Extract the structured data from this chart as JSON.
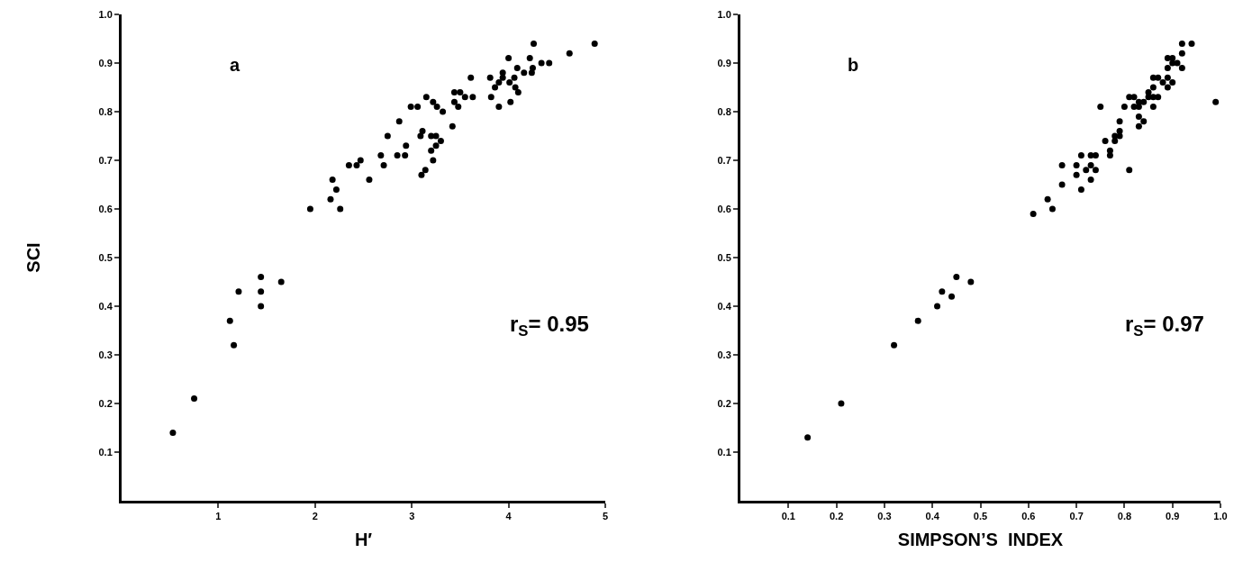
{
  "chart_data": [
    {
      "type": "scatter",
      "xlabel": "H′",
      "ylabel": "SCI",
      "marker": "circle",
      "grid": false,
      "annotations": [
        "a",
        "r$_{S}$= 0.95"
      ],
      "xlim": [
        0,
        5
      ],
      "xticks": [
        1,
        2,
        3,
        4,
        5
      ],
      "ylim": [
        0,
        1
      ],
      "yticks": [
        0.1,
        0.2,
        0.3,
        0.4,
        0.5,
        0.6,
        0.7,
        0.8,
        0.9,
        {
          "value": 1,
          "label": "1.0"
        }
      ],
      "series": [
        {
          "color": "#000000",
          "x": [
            0.53,
            0.75,
            1.12,
            1.16,
            1.21,
            1.44,
            1.44,
            1.44,
            1.65,
            1.95,
            2.16,
            2.26,
            2.18,
            2.22,
            2.35,
            2.43,
            2.47,
            2.56,
            2.68,
            2.71,
            2.75,
            2.85,
            2.87,
            2.93,
            2.94,
            2.99,
            3.06,
            3.1,
            3.09,
            3.11,
            3.14,
            3.15,
            3.2,
            3.2,
            3.22,
            3.22,
            3.25,
            3.25,
            3.26,
            3.3,
            3.32,
            3.42,
            3.44,
            3.44,
            3.48,
            3.5,
            3.55,
            3.61,
            3.63,
            3.81,
            3.82,
            3.86,
            3.9,
            3.9,
            3.94,
            3.94,
            4.0,
            4.01,
            4.02,
            4.06,
            4.07,
            4.09,
            4.1,
            4.16,
            4.22,
            4.24,
            4.25,
            4.26,
            4.34,
            4.42,
            4.63,
            4.89
          ],
          "values": [
            0.14,
            0.21,
            0.37,
            0.32,
            0.43,
            0.46,
            0.43,
            0.4,
            0.45,
            0.6,
            0.62,
            0.6,
            0.66,
            0.64,
            0.69,
            0.69,
            0.7,
            0.66,
            0.71,
            0.69,
            0.75,
            0.71,
            0.78,
            0.71,
            0.73,
            0.81,
            0.81,
            0.67,
            0.75,
            0.76,
            0.68,
            0.83,
            0.72,
            0.75,
            0.7,
            0.82,
            0.75,
            0.73,
            0.81,
            0.74,
            0.8,
            0.77,
            0.84,
            0.82,
            0.81,
            0.84,
            0.83,
            0.87,
            0.83,
            0.87,
            0.83,
            0.85,
            0.81,
            0.86,
            0.88,
            0.87,
            0.91,
            0.86,
            0.82,
            0.87,
            0.85,
            0.89,
            0.84,
            0.88,
            0.91,
            0.88,
            0.89,
            0.94,
            0.9,
            0.9,
            0.92,
            0.94
          ]
        }
      ]
    },
    {
      "type": "scatter",
      "xlabel": "SIMPSON’S  INDEX",
      "marker": "circle",
      "grid": false,
      "annotations": [
        "b",
        "r$_{S}$= 0.97"
      ],
      "xlim": [
        0,
        1
      ],
      "xticks": [
        0.1,
        0.2,
        0.3,
        0.4,
        0.5,
        0.6,
        0.7,
        0.8,
        0.9,
        {
          "value": 1,
          "label": "1.0"
        }
      ],
      "ylim": [
        0,
        1
      ],
      "yticks": [
        0.1,
        0.2,
        0.3,
        0.4,
        0.5,
        0.6,
        0.7,
        0.8,
        0.9,
        {
          "value": 1,
          "label": "1.0"
        }
      ],
      "series": [
        {
          "color": "#000000",
          "x": [
            0.14,
            0.21,
            0.32,
            0.37,
            0.41,
            0.42,
            0.44,
            0.45,
            0.48,
            0.61,
            0.64,
            0.65,
            0.67,
            0.67,
            0.7,
            0.7,
            0.71,
            0.71,
            0.72,
            0.73,
            0.73,
            0.73,
            0.74,
            0.74,
            0.75,
            0.76,
            0.77,
            0.77,
            0.78,
            0.78,
            0.79,
            0.79,
            0.79,
            0.8,
            0.81,
            0.81,
            0.82,
            0.82,
            0.83,
            0.83,
            0.83,
            0.83,
            0.84,
            0.84,
            0.85,
            0.85,
            0.86,
            0.86,
            0.86,
            0.86,
            0.87,
            0.87,
            0.88,
            0.89,
            0.89,
            0.89,
            0.89,
            0.9,
            0.9,
            0.9,
            0.91,
            0.92,
            0.92,
            0.92,
            0.94,
            0.99
          ],
          "values": [
            0.13,
            0.2,
            0.32,
            0.37,
            0.4,
            0.43,
            0.42,
            0.46,
            0.45,
            0.59,
            0.62,
            0.6,
            0.65,
            0.69,
            0.69,
            0.67,
            0.71,
            0.64,
            0.68,
            0.66,
            0.71,
            0.69,
            0.71,
            0.68,
            0.81,
            0.74,
            0.72,
            0.71,
            0.75,
            0.74,
            0.76,
            0.78,
            0.75,
            0.81,
            0.83,
            0.68,
            0.83,
            0.81,
            0.79,
            0.82,
            0.77,
            0.81,
            0.82,
            0.78,
            0.83,
            0.84,
            0.83,
            0.81,
            0.87,
            0.85,
            0.87,
            0.83,
            0.86,
            0.91,
            0.85,
            0.87,
            0.89,
            0.86,
            0.9,
            0.91,
            0.9,
            0.92,
            0.89,
            0.94,
            0.94,
            0.82
          ]
        }
      ]
    }
  ]
}
